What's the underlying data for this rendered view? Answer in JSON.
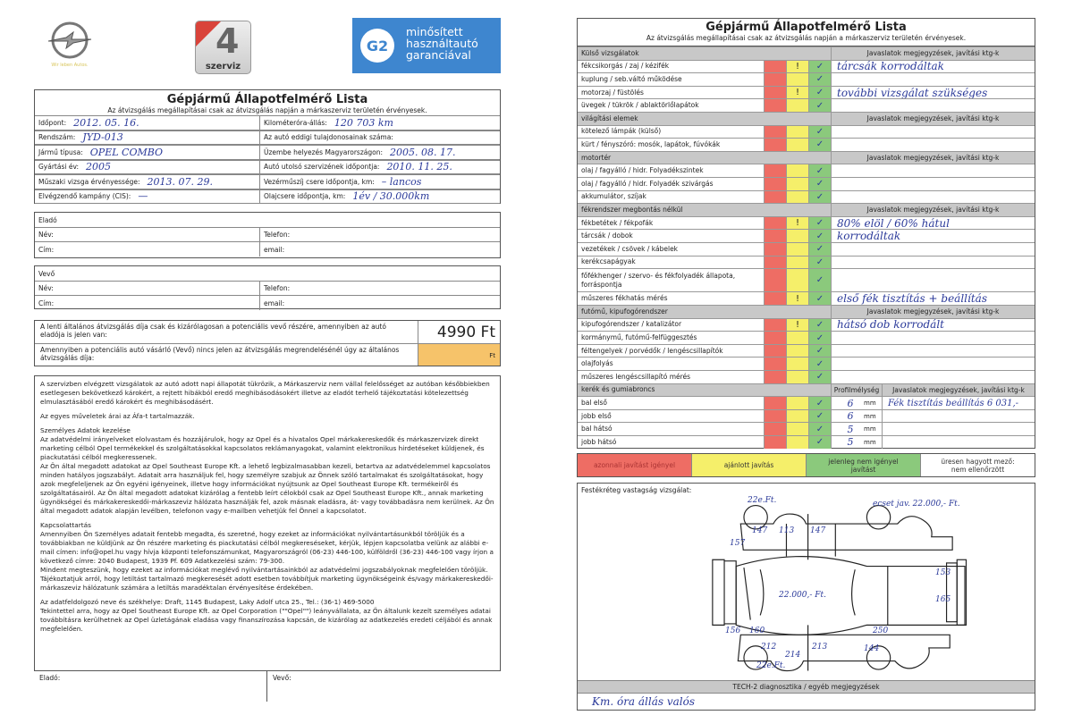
{
  "logos": {
    "opel_tagline": "Wir leben Autos.",
    "four_number": "4",
    "four_label": "szerviz",
    "g2_mark": "G2",
    "g2_text": [
      "minősített",
      "használtautó",
      "garanciával"
    ]
  },
  "left": {
    "title": "Gépjármű Állapotfelmérő Lista",
    "subtitle": "Az átvizsgálás megállapításai csak az átvizsgálás napján a márkaszerviz területén érvényesek.",
    "fields": [
      {
        "label": "Időpont:",
        "value": "2012. 05. 16.",
        "label2": "Kilométeróra-állás:",
        "value2": "120 703 km"
      },
      {
        "label": "Rendszám:",
        "value": "JYD-013",
        "label2": "Az autó eddigi tulajdonosainak száma:",
        "value2": ""
      },
      {
        "label": "Jármű típusa:",
        "value": "OPEL COMBO",
        "label2": "Üzembe helyezés Magyarországon:",
        "value2": "2005. 08. 17."
      },
      {
        "label": "Gyártási év:",
        "value": "2005",
        "label2": "Autó utolsó szervizének időpontja:",
        "value2": "2010. 11. 25."
      },
      {
        "label": "Műszaki vizsga érvényessége:",
        "value": "2013. 07. 29.",
        "label2": "Vezérműszíj csere időpontja, km:",
        "value2": "– lancos"
      },
      {
        "label": "Elvégzendő kampány (CIS):",
        "value": "—",
        "label2": "Olajcsere időpontja, km:",
        "value2": "1év / 30.000km"
      }
    ],
    "seller": {
      "header": "Eladó",
      "name": "Név:",
      "phone": "Telefon:",
      "address": "Cím:",
      "email": "email:"
    },
    "buyer": {
      "header": "Vevő",
      "name": "Név:",
      "phone": "Telefon:",
      "address": "Cím:",
      "email": "email:"
    },
    "price": {
      "text1": "A lenti általános átvizsgálás díja csak és kizárólagosan a potenciális vevő részére, amennyiben az autó eladója is jelen van:",
      "value1": "4990 Ft",
      "text2": "Amennyiben a potenciális autó vásárló (Vevő) nincs jelen az átvizsgálás megrendelésénél úgy az általános átvizsgálás díja:",
      "value2": "Ft"
    },
    "paragraphs": [
      "A szervizben elvégzett vizsgálatok az autó adott napi állapotát tükrözik, a Márkaszerviz nem vállal felelősséget az autóban későbbiekben esetlegesen bekövetkező károkért, a rejtett hibákból eredő meghibásodásokért illetve az eladót terhelő tájékoztatási kötelezettség elmulasztásából eredő károkért és meghibásodásért.",
      "Az egyes műveletek árai az Áfa-t tartalmazzák.",
      "Személyes Adatok kezelése",
      "Az adatvédelmi irányelveket elolvastam és hozzájárulok, hogy az Opel és a hivatalos Opel márkakereskedők és márkaszervizek direkt marketing célból Opel termékekkel és szolgáltatásokkal kapcsolatos reklámanyagokat, valamint elektronikus hirdetéseket küldjenek, és piackutatási célból megkeressenek.",
      "Az Ön által megadott adatokat az Opel Southeast Europe Kft. a lehető legbizalmasabban kezeli, betartva az adatvédelemmel kapcsolatos minden hatályos jogszabályt. Adatait arra használjuk fel, hogy személyre szabjuk az Önnek szóló tartalmakat és szolgáltatásokat, hogy azok megfeleljenek az Ön egyéni igényeinek, illetve hogy információkat nyújtsunk az Opel Southeast Europe Kft. termékeiről és szolgáltatásairól. Az Ön által megadott adatokat kizárólag a fentebb leírt célokból csak az Opel Southeast Europe Kft., annak marketing ügynökségei és márkakereskedői-márkaszeviz hálózata használják fel, azok másnak eladásra, át- vagy továbbadásra nem kerülnek. Az Ön által megadott adatok alapján levélben, telefonon vagy e-mailben vehetjük fel Önnel a kapcsolatot.",
      "Kapcsolattartás",
      "Amennyiben Ön Személyes adatait fentebb megadta, és szeretné, hogy ezeket az információkat nyilvántartásunkból töröljük és a továbbiakban ne küldjünk az Ön részére marketing és piackutatási célból megkereséseket, kérjük, lépjen kapcsolatba velünk az alábbi e-mail címen: info@opel.hu vagy hívja központi telefonszámunkat, Magyarországról (06-23) 446-100, külföldről (36-23) 446-100 vagy írjon a következő címre: 2040 Budapest, 1939 Pf. 609 Adatkezelési szám: 79-300.",
      "Mindent megteszünk, hogy ezeket az információkat meglévő nyilvántartásainkból az adatvédelmi jogszabályoknak megfelelően töröljük. Tájékoztatjuk arról, hogy letiltást tartalmazó megkeresését adott esetben továbbítjuk marketing ügynökségeink és/vagy márkakereskedői-márkaszeviz hálózatunk számára a letiltás maradéktalan érvényesítése érdekében.",
      "Az adatfeldolgozó neve és székhelye: Draft, 1145 Budapest, Laky Adolf utca 25., Tel.: (36-1) 469-5000",
      "Tekintettel arra, hogy az Opel Southeast Europe Kft. az Opel Corporation (\"\"Opel\"\") leányvállalata, az Ön általunk kezelt személyes adatai továbbításra kerülhetnek az Opel üzletágának eladása vagy finanszírozása kapcsán, de kizárólag az adatkezelés eredeti céljából és annak megfelelően."
    ],
    "sign_seller": "Eladó:",
    "sign_buyer": "Vevő:"
  },
  "right": {
    "title": "Gépjármű Állapotfelmérő Lista",
    "subtitle": "Az átvizsgálás megállapításai csak az átvizsgálás napján a márkaszerviz területén érvényesek.",
    "notes_header": "Javaslatok megjegyzések, javítási ktg-k",
    "profile_header": "Profilmélység",
    "mm": "mm",
    "sections": [
      {
        "header": "Külső vizsgálatok",
        "rows": [
          {
            "label": "fékcsikorgás / zaj / kézifék",
            "mark": "!",
            "check": "✓",
            "note": "tárcsák korrodáltak"
          },
          {
            "label": "kuplung / seb.váltó működése",
            "mark": "",
            "check": "✓",
            "note": ""
          },
          {
            "label": "motorzaj / füstölés",
            "mark": "!",
            "check": "✓",
            "note": "további vizsgálat szükséges"
          },
          {
            "label": "üvegek / tükrök / ablaktörlőlapátok",
            "mark": "",
            "check": "✓",
            "note": ""
          }
        ]
      },
      {
        "header": "világítási elemek",
        "rows": [
          {
            "label": "kötelező lámpák (külső)",
            "mark": "",
            "check": "✓",
            "note": ""
          },
          {
            "label": "kürt / fényszóró: mosók, lapátok, fúvókák",
            "mark": "",
            "check": "✓",
            "note": ""
          }
        ]
      },
      {
        "header": "motortér",
        "rows": [
          {
            "label": "olaj / fagyálló / hidr. Folyadékszintek",
            "mark": "",
            "check": "✓",
            "note": ""
          },
          {
            "label": "olaj / fagyálló / hidr. Folyadék szivárgás",
            "mark": "",
            "check": "✓",
            "note": ""
          },
          {
            "label": "akkumulátor, szíjak",
            "mark": "",
            "check": "✓",
            "note": ""
          }
        ]
      },
      {
        "header": "fékrendszer megbontás nélkül",
        "rows": [
          {
            "label": "fékbetétek / fékpofák",
            "mark": "!",
            "check": "✓",
            "note": "80% elöl / 60% hátul"
          },
          {
            "label": "tárcsák / dobok",
            "mark": "",
            "check": "✓",
            "note": "korrodáltak"
          },
          {
            "label": "vezetékek / csövek / kábelek",
            "mark": "",
            "check": "✓",
            "note": ""
          },
          {
            "label": "kerékcsapágyak",
            "mark": "",
            "check": "✓",
            "note": ""
          },
          {
            "label": "főfékhenger / szervo- és fékfolyadék állapota, forráspontja",
            "mark": "",
            "check": "✓",
            "note": "",
            "tall": true
          },
          {
            "label": "műszeres fékhatás mérés",
            "mark": "!",
            "check": "✓",
            "note": "első fék tisztítás + beállítás"
          }
        ]
      },
      {
        "header": "futómű, kipufogórendszer",
        "rows": [
          {
            "label": "kipufogórendszer / katalizátor",
            "mark": "!",
            "check": "✓",
            "note": "hátsó dob korrodált"
          },
          {
            "label": "kormánymű, futómű-felfüggesztés",
            "mark": "",
            "check": "✓",
            "note": ""
          },
          {
            "label": "féltengelyek / porvédők / lengéscsillapítók",
            "mark": "",
            "check": "✓",
            "note": ""
          },
          {
            "label": "olajfolyás",
            "mark": "",
            "check": "✓",
            "note": ""
          },
          {
            "label": "műszeres lengéscsillapító mérés",
            "mark": "",
            "check": "✓",
            "note": ""
          }
        ]
      }
    ],
    "tires": {
      "header": "kerék és gumiabroncs",
      "rows": [
        {
          "label": "bal első",
          "check": "✓",
          "depth": "6",
          "note": "Fék tisztítás beállítás 6 031,-"
        },
        {
          "label": "jobb első",
          "check": "✓",
          "depth": "6",
          "note": ""
        },
        {
          "label": "bal hátsó",
          "check": "✓",
          "depth": "5",
          "note": ""
        },
        {
          "label": "jobb hátsó",
          "check": "✓",
          "depth": "5",
          "note": ""
        }
      ]
    },
    "legend": [
      {
        "label": "azonnali javítást igényel",
        "color": "#ee6d64"
      },
      {
        "label": "ajánlott javítás",
        "color": "#f5ef6a"
      },
      {
        "label": "jelenleg nem igényel javítást",
        "color": "#8bc97c"
      },
      {
        "label": "üresen hagyott mező: nem ellenőrzött",
        "color": "#ffffff"
      }
    ],
    "paint": {
      "header": "Festékréteg vastagság vizsgálat:",
      "annotations": [
        "22e.Ft.",
        "ecset jav. 22.000,- Ft.",
        "147",
        "113",
        "147",
        "157",
        "153",
        "165",
        "22.000,- Ft.",
        "156",
        "160",
        "250",
        "212",
        "214",
        "213",
        "144",
        "22e.Ft."
      ]
    },
    "tech2": {
      "header": "TECH-2 diagnosztika / egyéb megjegyzések",
      "note": "Km. óra állás valós"
    }
  }
}
